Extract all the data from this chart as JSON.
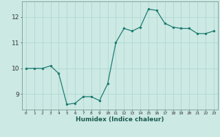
{
  "x": [
    0,
    1,
    2,
    3,
    4,
    5,
    6,
    7,
    8,
    9,
    10,
    11,
    12,
    13,
    14,
    15,
    16,
    17,
    18,
    19,
    20,
    21,
    22,
    23
  ],
  "y": [
    10.0,
    10.0,
    10.0,
    10.1,
    9.8,
    8.6,
    8.65,
    8.9,
    8.9,
    8.75,
    9.4,
    11.0,
    11.55,
    11.45,
    11.6,
    12.3,
    12.25,
    11.75,
    11.6,
    11.55,
    11.55,
    11.35,
    11.35,
    11.45
  ],
  "xlabel": "Humidex (Indice chaleur)",
  "bg_color": "#cce9e4",
  "grid_color": "#b0d8d2",
  "line_color": "#1a7a6e",
  "marker_color": "#1a7a6e",
  "ylim": [
    8.4,
    12.6
  ],
  "yticks": [
    9,
    10,
    11,
    12
  ],
  "xticks": [
    0,
    1,
    2,
    3,
    4,
    5,
    6,
    7,
    8,
    9,
    10,
    11,
    12,
    13,
    14,
    15,
    16,
    17,
    18,
    19,
    20,
    21,
    22,
    23
  ]
}
